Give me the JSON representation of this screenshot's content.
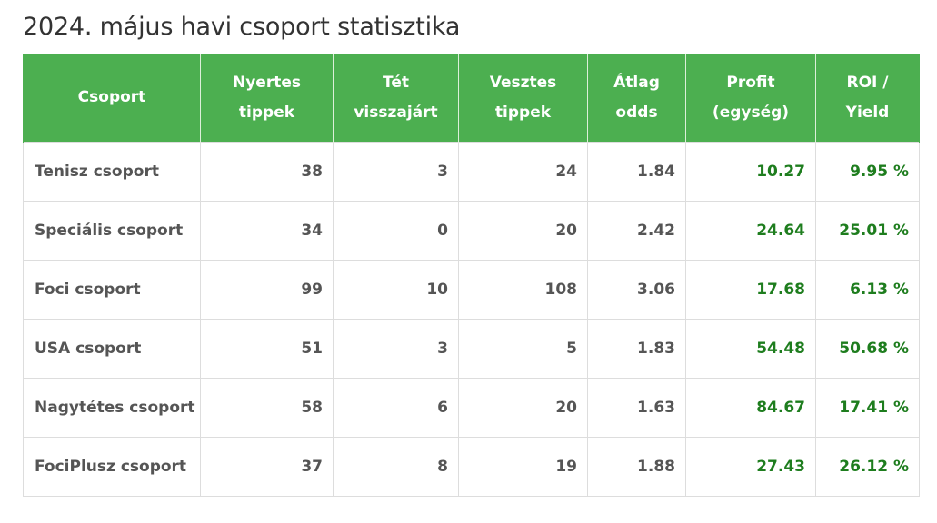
{
  "title": "2024. május havi csoport statisztika",
  "table": {
    "headers": [
      {
        "line1": "Csoport",
        "line2": ""
      },
      {
        "line1": "Nyertes",
        "line2": "tippek"
      },
      {
        "line1": "Tét",
        "line2": "visszajárt"
      },
      {
        "line1": "Vesztes",
        "line2": "tippek"
      },
      {
        "line1": "Átlag",
        "line2": "odds"
      },
      {
        "line1": "Profit",
        "line2": "(egység)"
      },
      {
        "line1": "ROI /",
        "line2": "Yield"
      }
    ],
    "rows": [
      [
        "Tenisz csoport",
        "38",
        "3",
        "24",
        "1.84",
        "10.27",
        "9.95 %"
      ],
      [
        "Speciális csoport",
        "34",
        "0",
        "20",
        "2.42",
        "24.64",
        "25.01 %"
      ],
      [
        "Foci csoport",
        "99",
        "10",
        "108",
        "3.06",
        "17.68",
        "6.13 %"
      ],
      [
        "USA csoport",
        "51",
        "3",
        "5",
        "1.83",
        "54.48",
        "50.68 %"
      ],
      [
        "Nagytétes csoport",
        "58",
        "6",
        "20",
        "1.63",
        "84.67",
        "17.41 %"
      ],
      [
        "FociPlusz csoport",
        "37",
        "8",
        "19",
        "1.88",
        "27.43",
        "26.12 %"
      ]
    ]
  },
  "colors": {
    "header_background": "#4caf50",
    "header_text": "#ffffff",
    "positive_value": "#1e7d1e",
    "body_text": "#555555",
    "border": "#dddddd"
  }
}
